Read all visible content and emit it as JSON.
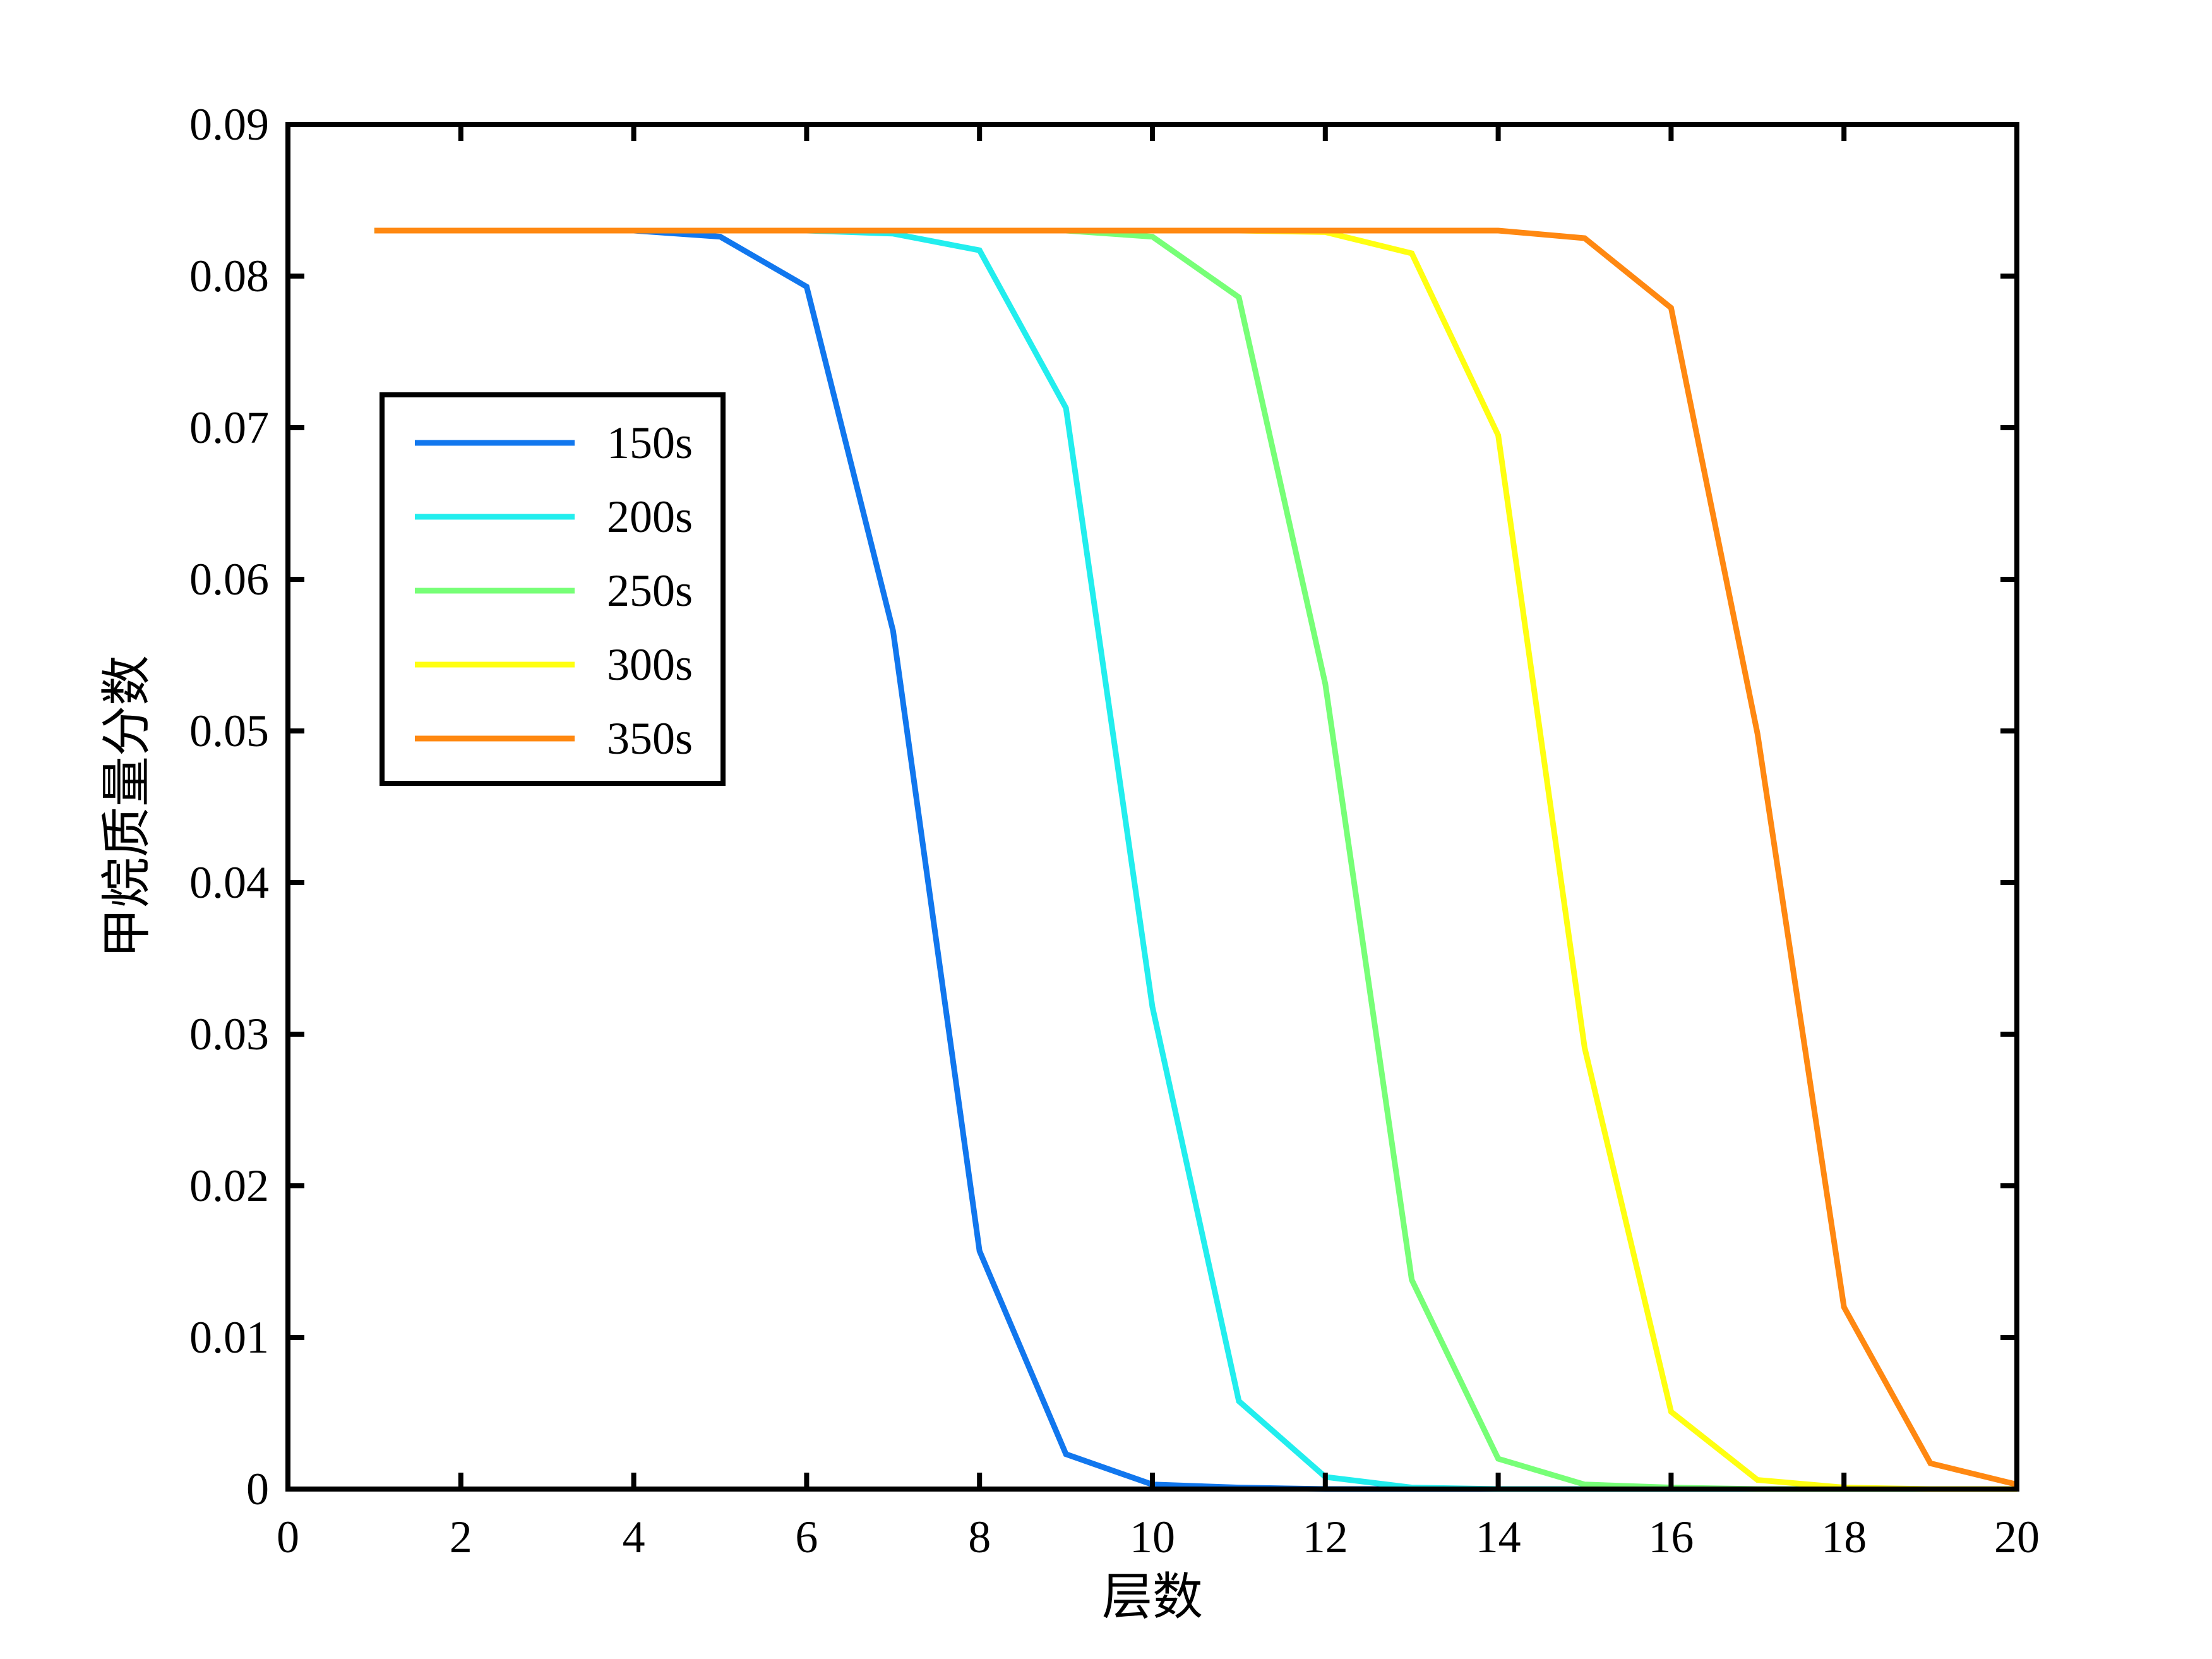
{
  "chart_data": {
    "type": "line",
    "xlabel": "层数",
    "ylabel": "甲烷质量分数",
    "xlim": [
      0,
      20
    ],
    "ylim": [
      0,
      0.09
    ],
    "xticks": [
      "0",
      "2",
      "4",
      "6",
      "8",
      "10",
      "12",
      "14",
      "16",
      "18",
      "20"
    ],
    "yticks": [
      "0",
      "0.01",
      "0.02",
      "0.03",
      "0.04",
      "0.05",
      "0.06",
      "0.07",
      "0.08",
      "0.09"
    ],
    "grid": false,
    "legend_position": "upper-left",
    "x": [
      1,
      2,
      3,
      4,
      5,
      6,
      7,
      8,
      9,
      10,
      11,
      12,
      13,
      14,
      15,
      16,
      17,
      18,
      19,
      20
    ],
    "series": [
      {
        "name": "150s",
        "color": "#1177ee",
        "values": [
          0.083,
          0.083,
          0.083,
          0.083,
          0.0826,
          0.0793,
          0.0566,
          0.0157,
          0.0023,
          0.0003,
          0.0001,
          0.0,
          0.0,
          0.0,
          0.0,
          0.0,
          0.0,
          0.0,
          0.0,
          0.0
        ]
      },
      {
        "name": "200s",
        "color": "#22eeee",
        "values": [
          0.083,
          0.083,
          0.083,
          0.083,
          0.083,
          0.083,
          0.0828,
          0.0817,
          0.0713,
          0.0318,
          0.0058,
          0.0008,
          0.0001,
          0.0,
          0.0,
          0.0,
          0.0,
          0.0,
          0.0,
          0.0
        ]
      },
      {
        "name": "250s",
        "color": "#77ff77",
        "values": [
          0.083,
          0.083,
          0.083,
          0.083,
          0.083,
          0.083,
          0.083,
          0.083,
          0.083,
          0.0826,
          0.0786,
          0.0531,
          0.0138,
          0.002,
          0.0003,
          0.0001,
          0.0,
          0.0,
          0.0,
          0.0
        ]
      },
      {
        "name": "300s",
        "color": "#ffff11",
        "values": [
          0.083,
          0.083,
          0.083,
          0.083,
          0.083,
          0.083,
          0.083,
          0.083,
          0.083,
          0.083,
          0.083,
          0.0829,
          0.0815,
          0.0695,
          0.0291,
          0.0051,
          0.0006,
          0.0001,
          0.0,
          0.0
        ]
      },
      {
        "name": "350s",
        "color": "#ff8811",
        "values": [
          0.083,
          0.083,
          0.083,
          0.083,
          0.083,
          0.083,
          0.083,
          0.083,
          0.083,
          0.083,
          0.083,
          0.083,
          0.083,
          0.083,
          0.0825,
          0.0779,
          0.0498,
          0.012,
          0.0017,
          0.0003
        ]
      }
    ]
  }
}
